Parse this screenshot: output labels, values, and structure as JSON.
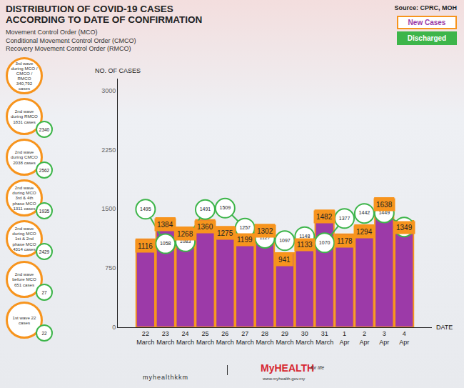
{
  "chart_data": {
    "type": "bar",
    "title": "DISTRIBUTION OF COVID-19 CASES ACCORDING TO DATE OF CONFIRMATION",
    "subtitle": [
      "Movement Control Order (MCO)",
      "Conditional Movement Control Order (CMCO)",
      "Recovery Movement Control Order (RMCO)"
    ],
    "source": "Source: CPRC, MOH",
    "x_label": "DATE",
    "y_label": "NO. OF CASES",
    "categories": [
      "22 March",
      "23 March",
      "24 March",
      "25 March",
      "26 March",
      "27 March",
      "28 March",
      "29 March",
      "30 March",
      "31 March",
      "1 Apr",
      "2 Apr",
      "3 Apr",
      "4 Apr"
    ],
    "series": [
      {
        "name": "New Cases",
        "type": "bar",
        "color": "#9c3aa8",
        "values": [
          1116,
          1384,
          1268,
          1360,
          1275,
          1199,
          1302,
          941,
          1133,
          1482,
          1178,
          1294,
          1638,
          1349
        ]
      },
      {
        "name": "Discharged",
        "type": "line",
        "color": "#3db54a",
        "marker": "circle",
        "values": [
          1495,
          1058,
          1083,
          1491,
          1509,
          1257,
          1127,
          1097,
          1148,
          1070,
          1377,
          1442,
          1449,
          1270
        ]
      }
    ],
    "ylim": [
      0,
      3150
    ],
    "yticks": [
      0,
      750,
      1500,
      2250,
      3000
    ],
    "grid": false,
    "data_labels": true,
    "annotations": [
      {
        "text": "3rd wave during MCO / CMCO / RMCO 340,792 cases"
      },
      {
        "text": "2nd wave during RMCO 1831 cases",
        "discharged": 2340
      },
      {
        "text": "2nd wave during CMCO 2038 cases",
        "discharged": 2562
      },
      {
        "text": "2nd wave during MCO 3rd & 4th phase MCO 1311 cases",
        "discharged": 1935
      },
      {
        "text": "2nd wave during MCO 1st & 2nd phase MCO 4314 cases",
        "discharged": 2429
      },
      {
        "text": "2nd wave before MCO 651 cases",
        "discharged": 27
      },
      {
        "text": "1st wave 22 cases",
        "discharged": 22
      }
    ],
    "footer": [
      "myhealthkkm",
      "MyHEALTH",
      "for life",
      "www.myhealth.gov.my"
    ]
  }
}
